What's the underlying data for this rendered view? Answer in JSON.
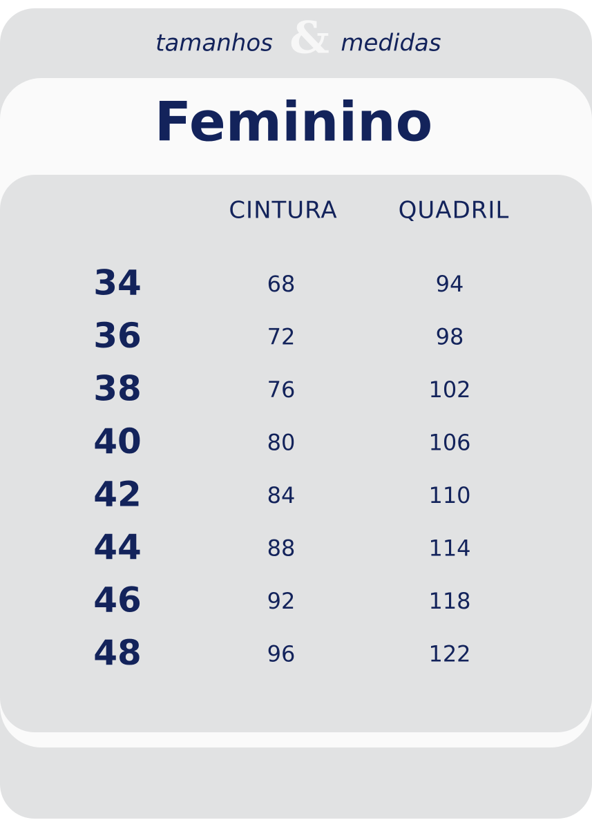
{
  "header": {
    "left": "tamanhos",
    "amp": "&",
    "right": "medidas"
  },
  "title": "Feminino",
  "table": {
    "columns": [
      "CINTURA",
      "QUADRIL"
    ],
    "rows": [
      [
        34,
        68,
        94
      ],
      [
        36,
        72,
        98
      ],
      [
        38,
        76,
        102
      ],
      [
        40,
        80,
        106
      ],
      [
        42,
        84,
        110
      ],
      [
        44,
        88,
        114
      ],
      [
        46,
        92,
        118
      ],
      [
        48,
        96,
        122
      ]
    ]
  }
}
